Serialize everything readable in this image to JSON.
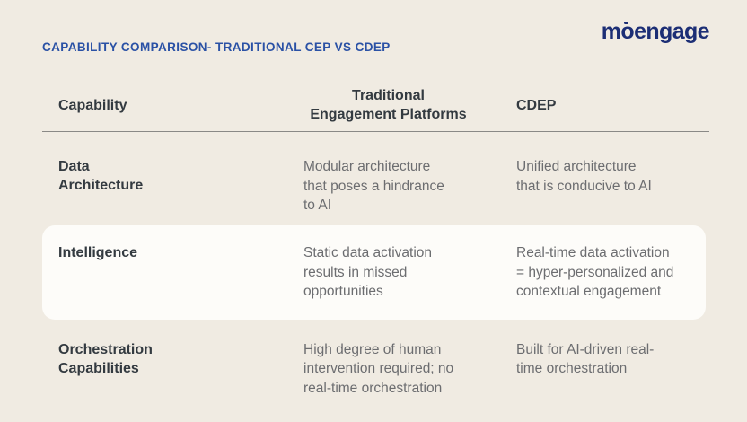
{
  "page": {
    "title": "CAPABILITY COMPARISON- TRADITIONAL CEP VS CDEP",
    "brand": "moengage"
  },
  "colors": {
    "background": "#f0ebe2",
    "title_blue": "#2a51a5",
    "logo_navy": "#1c2e75",
    "heading_text": "#333a40",
    "body_text": "#6c6d70",
    "divider": "#8a8986",
    "highlight_card": "#fdfcf9"
  },
  "table": {
    "columns": [
      "Capability",
      "Traditional\nEngagement Platforms",
      "CDEP"
    ],
    "rows": [
      {
        "capability": "Data\nArchitecture",
        "traditional": "Modular architecture\nthat poses a hindrance\nto AI",
        "cdep": "Unified architecture\nthat is conducive to AI",
        "highlighted": false
      },
      {
        "capability": "Intelligence",
        "traditional": "Static data activation\nresults in missed\nopportunities",
        "cdep": "Real-time data activation\n= hyper-personalized and\ncontextual engagement",
        "highlighted": true
      },
      {
        "capability": "Orchestration\nCapabilities",
        "traditional": "High degree of human\nintervention required; no\nreal-time orchestration",
        "cdep": "Built for AI-driven real-\ntime orchestration",
        "highlighted": false
      }
    ]
  }
}
